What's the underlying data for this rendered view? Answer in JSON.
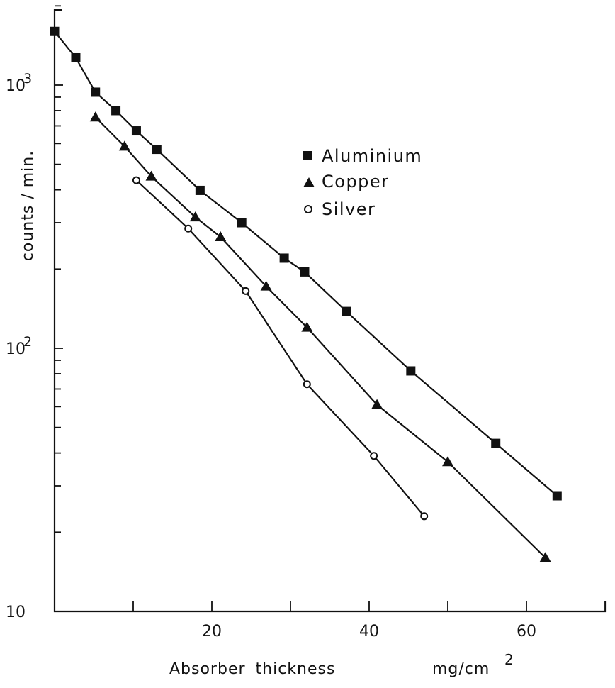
{
  "chart_data": {
    "type": "scatter",
    "title": "",
    "xlabel": "Absorber thickness",
    "xunit": "mg/cm",
    "xunit_exponent": "2",
    "ylabel": "counts / min.",
    "xlim": [
      0,
      70
    ],
    "ylim": [
      10,
      2000
    ],
    "y_scale": "log",
    "grid": false,
    "legend_position": "upper-right",
    "x_ticks": [
      20,
      40,
      60
    ],
    "x_tick_labels": [
      "20",
      "40",
      "60"
    ],
    "y_tick_labels": [
      {
        "value": 1000,
        "base": "10",
        "exp": "3"
      },
      {
        "value": 100,
        "base": "10",
        "exp": "2"
      },
      {
        "value": 10,
        "base": "10",
        "exp": ""
      }
    ],
    "series": [
      {
        "name": "Aluminium",
        "marker": "square",
        "x": [
          0,
          2.7,
          5.2,
          7.8,
          10.4,
          13,
          18.5,
          23.8,
          29.2,
          31.8,
          37.1,
          45.3,
          56.1,
          63.9
        ],
        "y": [
          1600,
          1270,
          940,
          800,
          670,
          570,
          398,
          300,
          220,
          195,
          138,
          82,
          43.5,
          27.5
        ]
      },
      {
        "name": "Copper",
        "marker": "triangle",
        "x": [
          5.2,
          8.9,
          12.3,
          17.9,
          21.1,
          26.9,
          32.1,
          41.0,
          50.0,
          62.4
        ],
        "y": [
          755,
          585,
          450,
          315,
          265,
          172,
          120,
          61,
          37,
          16
        ]
      },
      {
        "name": "Silver",
        "marker": "circle",
        "x": [
          10.4,
          17.0,
          24.3,
          32.1,
          40.6,
          47.0
        ],
        "y": [
          435,
          285,
          165,
          73,
          39,
          23
        ]
      }
    ]
  }
}
